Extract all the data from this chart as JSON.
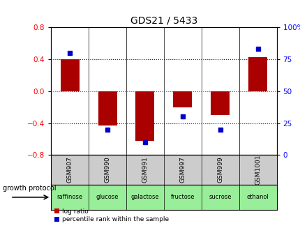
{
  "title": "GDS21 / 5433",
  "title_color": "#000000",
  "samples": [
    "GSM907",
    "GSM990",
    "GSM991",
    "GSM997",
    "GSM999",
    "GSM1001"
  ],
  "protocols": [
    "raffinose",
    "glucose",
    "galactose",
    "fructose",
    "sucrose",
    "ethanol"
  ],
  "log_ratios": [
    0.4,
    -0.43,
    -0.62,
    -0.2,
    -0.3,
    0.43
  ],
  "percentile_ranks": [
    80,
    20,
    10,
    30,
    20,
    83
  ],
  "left_ylim": [
    -0.8,
    0.8
  ],
  "right_ylim": [
    0,
    100
  ],
  "left_yticks": [
    -0.8,
    -0.4,
    0,
    0.4,
    0.8
  ],
  "right_yticks": [
    0,
    25,
    50,
    75,
    100
  ],
  "bar_color": "#aa0000",
  "square_color": "#0000cc",
  "hline_zero_color": "#cc0000",
  "hline_dotted_color": "#000000",
  "protocol_color": "#99ee99",
  "sample_bg": "#cccccc",
  "legend_log_color": "#cc0000",
  "legend_pct_color": "#0000cc",
  "bar_width": 0.5,
  "figwidth": 4.31,
  "figheight": 3.27,
  "dpi": 100
}
